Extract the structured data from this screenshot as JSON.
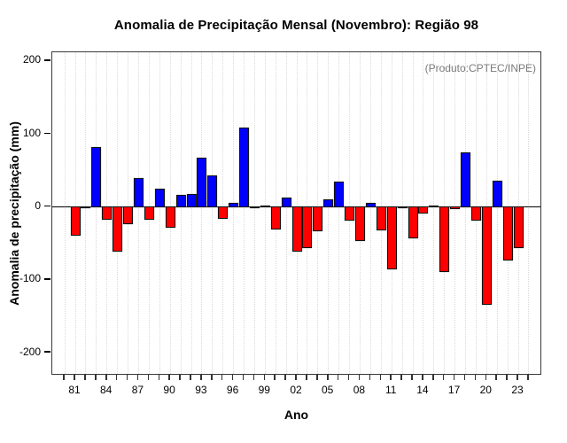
{
  "chart_data": {
    "type": "bar",
    "title": "Anomalia de Precipitação Mensal (Novembro): Região 98",
    "annotation": "(Produto:CPTEC/INPE)",
    "xlabel": "Ano",
    "ylabel": "Anomalia de precipitação (mm)",
    "x": [
      1981,
      1982,
      1983,
      1984,
      1985,
      1986,
      1987,
      1988,
      1989,
      1990,
      1991,
      1992,
      1993,
      1994,
      1995,
      1996,
      1997,
      1998,
      1999,
      2000,
      2001,
      2002,
      2003,
      2004,
      2005,
      2006,
      2007,
      2008,
      2009,
      2010,
      2011,
      2012,
      2013,
      2014,
      2015,
      2016,
      2017,
      2018,
      2019,
      2020,
      2021,
      2022,
      2023
    ],
    "values": [
      -40,
      -2,
      83,
      -19,
      -62,
      -25,
      40,
      -18,
      26,
      -30,
      17,
      18,
      68,
      44,
      -17,
      7,
      110,
      -3,
      3,
      -32,
      14,
      -62,
      -57,
      -34,
      11,
      36,
      -20,
      -48,
      6,
      -33,
      -87,
      -3,
      -44,
      -10,
      3,
      -90,
      -4,
      76,
      -20,
      -135,
      37,
      -74,
      -58
    ],
    "x_tick_labels": [
      "81",
      "84",
      "87",
      "90",
      "93",
      "96",
      "99",
      "02",
      "05",
      "08",
      "11",
      "14",
      "17",
      "20",
      "23"
    ],
    "x_tick_label_interval": 3,
    "y_ticks": [
      200,
      100,
      0,
      -100,
      -200
    ],
    "ylim": [
      -232,
      211
    ],
    "grid": "vertical-dotted",
    "legend": "none",
    "positive_color": "#0000FF",
    "negative_color": "#FF0000",
    "annotation_color": "#7A7A7A"
  }
}
